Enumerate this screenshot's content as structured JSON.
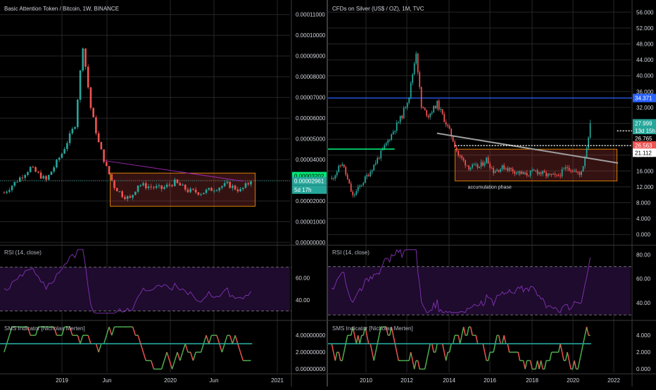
{
  "colors": {
    "background": "#000000",
    "grid": "#262626",
    "separator": "#3a3a3a",
    "bull": "#26a69a",
    "bear": "#ef5350",
    "text": "#b2b5be",
    "axis_text": "#d1d4dc",
    "rsi_line": "#7b2fa8",
    "rsi_fill": "#1e0b2e",
    "sms_up": "#4caf50",
    "sms_down": "#ef5350",
    "sms_mid": "#26a69a"
  },
  "chart_data": [
    {
      "type": "candlestick",
      "title": "Basic Attention Token / Bitcoin, 1W, BINANCE",
      "price_axis_ticks": [
        "0.00011000",
        "0.00010000",
        "0.00009000",
        "0.00008000",
        "0.00007000",
        "0.00006000",
        "0.00005000",
        "0.00004000",
        "0.00003000",
        "0.00002000",
        "0.00001000",
        "0.00000000"
      ],
      "y_range": [
        0,
        0.000115
      ],
      "time_axis_ticks": [
        "2019",
        "Jun",
        "2020",
        "Jun",
        "2021"
      ],
      "price_tags": [
        {
          "label": "0.00003202",
          "value": 3.202e-05,
          "color": "#00e676",
          "text_color": "#000000"
        },
        {
          "label": "0.00002961",
          "value": 2.961e-05,
          "color": "#26a69a",
          "text_color": "#ffffff"
        },
        {
          "label": "5d 17h",
          "value": 2.55e-05,
          "color": "#26a69a",
          "text_color": "#ffffff"
        }
      ],
      "annotations": {
        "range_box": {
          "t_start": 0.38,
          "t_end": 0.88,
          "low": 1.75e-05,
          "high": 3.35e-05
        },
        "trend_line": {
          "t_start": 0.36,
          "v_start": 3.95e-05,
          "t_end": 0.84,
          "v_end": 2.95e-05
        },
        "current_price_line": 2.961e-05
      },
      "rsi": {
        "label": "RSI (14, close)",
        "ticks": [
          "60.00",
          "40.00"
        ],
        "levels": [
          70,
          30
        ],
        "range": [
          22,
          88
        ]
      },
      "sms": {
        "label": "SMS Indicator [Nicholas Merten]",
        "ticks": [
          "4.00000000",
          "2.00000000",
          "0.00000000"
        ],
        "mid_level": 3,
        "range": [
          -0.4,
          5.6
        ]
      },
      "series_seed": {
        "n": 95,
        "start": 2.5e-05,
        "end": 2.961e-05,
        "anchors": [
          [
            0,
            2.4e-05
          ],
          [
            10,
            3.6e-05
          ],
          [
            16,
            3e-05
          ],
          [
            22,
            4.3e-05
          ],
          [
            27,
            5.7e-05
          ],
          [
            30,
            9.5e-05
          ],
          [
            33,
            6.5e-05
          ],
          [
            36,
            4.8e-05
          ],
          [
            39,
            3.6e-05
          ],
          [
            42,
            2.7e-05
          ],
          [
            45,
            2.3e-05
          ],
          [
            48,
            2.1e-05
          ],
          [
            51,
            2.8e-05
          ],
          [
            55,
            2.7e-05
          ],
          [
            60,
            2.6e-05
          ],
          [
            65,
            2.9e-05
          ],
          [
            70,
            2.5e-05
          ],
          [
            75,
            2.4e-05
          ],
          [
            80,
            2.6e-05
          ],
          [
            85,
            2.8e-05
          ],
          [
            90,
            2.5e-05
          ],
          [
            94,
            2.961e-05
          ]
        ],
        "seed": 7
      }
    },
    {
      "type": "candlestick",
      "title": "CFDs on Silver (US$ / OZ), 1M, TVC",
      "price_axis_ticks": [
        "56.000",
        "52.000",
        "48.000",
        "44.000",
        "40.000",
        "36.000",
        "32.000",
        "28.000",
        "24.000",
        "20.000",
        "16.000",
        "12.000",
        "8.000",
        "4.000",
        "0.000"
      ],
      "y_range": [
        -2,
        58
      ],
      "time_axis_ticks": [
        "2010",
        "2012",
        "2014",
        "2016",
        "2018",
        "2020",
        "2022"
      ],
      "price_tags": [
        {
          "label": "34.371",
          "value": 34.371,
          "color": "#2962ff",
          "text_color": "#ffffff"
        },
        {
          "label": "27.999",
          "value": 27.999,
          "color": "#26a69a",
          "text_color": "#ffffff"
        },
        {
          "label": "13d 15h",
          "value": 26.1,
          "color": "#26a69a",
          "text_color": "#ffffff"
        },
        {
          "label": "26.765",
          "value": 24.2,
          "color": "#000000",
          "text_color": "#ffffff"
        },
        {
          "label": "26.563",
          "value": 22.4,
          "color": "#ef5350",
          "text_color": "#ffffff"
        },
        {
          "label": "21.112",
          "value": 20.6,
          "color": "#ffffff",
          "text_color": "#000000"
        }
      ],
      "annotations": {
        "range_box": {
          "t_start": 0.42,
          "t_end": 0.955,
          "low": 13.5,
          "high": 21.5
        },
        "range_label": "accumulation phase",
        "trend_line": {
          "t_start": 0.36,
          "v_start": 25.5,
          "t_end": 1.08,
          "v_end": 18.0
        },
        "support_line": {
          "t_start": 0.0,
          "t_end": 0.22,
          "value": 21.5
        },
        "resistance_line": 34.371,
        "dotted_lines": [
          {
            "t_start": 0.955,
            "t_end": 1.2,
            "value": 26.1
          },
          {
            "t_start": 0.42,
            "t_end": 1.2,
            "value": 22.4
          }
        ]
      },
      "rsi": {
        "label": "RSI (14, close)",
        "ticks": [
          "80.00",
          "60.00",
          "40.00"
        ],
        "levels": [
          70,
          30
        ],
        "range": [
          26,
          86
        ]
      },
      "sms": {
        "label": "SMS Indicator [Nicholas Merten]",
        "ticks": [
          "4.000",
          "2.000",
          "0.000"
        ],
        "mid_level": 3,
        "range": [
          -0.4,
          5.6
        ]
      },
      "series_seed": {
        "n": 148,
        "start": 15,
        "end": 27.999,
        "anchors": [
          [
            0,
            14
          ],
          [
            6,
            18
          ],
          [
            12,
            9.5
          ],
          [
            22,
            16
          ],
          [
            30,
            22
          ],
          [
            40,
            30
          ],
          [
            44,
            35
          ],
          [
            48,
            46
          ],
          [
            51,
            32
          ],
          [
            55,
            30
          ],
          [
            60,
            33
          ],
          [
            64,
            29
          ],
          [
            68,
            25
          ],
          [
            72,
            20
          ],
          [
            78,
            17
          ],
          [
            84,
            17
          ],
          [
            88,
            19
          ],
          [
            92,
            16
          ],
          [
            98,
            17
          ],
          [
            104,
            16
          ],
          [
            110,
            15
          ],
          [
            116,
            16
          ],
          [
            122,
            15
          ],
          [
            128,
            14.5
          ],
          [
            134,
            17
          ],
          [
            138,
            16
          ],
          [
            141,
            15
          ],
          [
            143,
            17.5
          ],
          [
            145,
            22
          ],
          [
            147,
            27.999
          ]
        ],
        "seed": 11
      }
    }
  ]
}
